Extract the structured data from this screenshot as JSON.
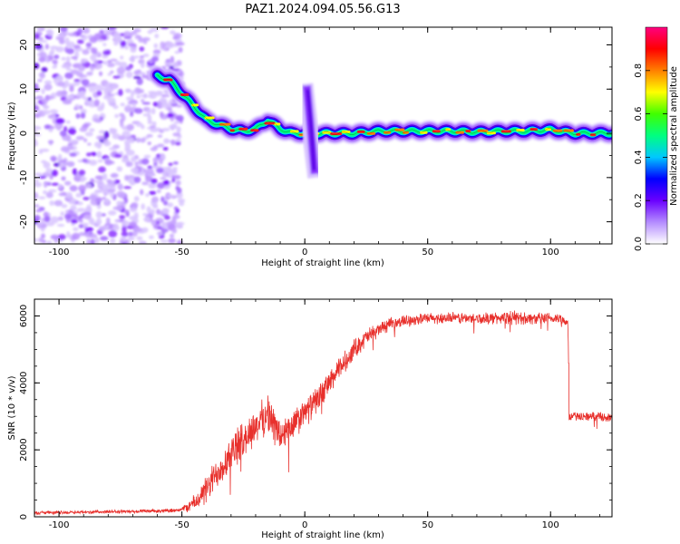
{
  "figure": {
    "title": "PAZ1.2024.094.05.56.G13"
  },
  "chart_data": [
    {
      "type": "heatmap",
      "title": "PAZ1.2024.094.05.56.G13",
      "xlabel": "Height of straight line (km)",
      "ylabel": "Frequency (Hz)",
      "xlim": [
        -110,
        125
      ],
      "ylim": [
        -25,
        24
      ],
      "x_ticks": [
        -100,
        -50,
        0,
        50,
        100
      ],
      "y_ticks": [
        -20,
        -10,
        0,
        10,
        20
      ],
      "colorbar": {
        "label": "Normalized spectral amplitude",
        "range": [
          0,
          1
        ],
        "ticks": [
          "0.0",
          "0.2",
          "0.4",
          "0.6",
          "0.8"
        ],
        "tick_values": [
          0,
          0.2,
          0.4,
          0.6,
          0.8
        ],
        "colors": [
          "#ffffff",
          "#b48cff",
          "#6a00ff",
          "#0000ff",
          "#00c8ff",
          "#00ff80",
          "#40ff00",
          "#ffff00",
          "#ff8000",
          "#ff0000",
          "#ff0080"
        ]
      },
      "noise_region": {
        "x_range": [
          -110,
          -50
        ],
        "y_range": [
          -25,
          24
        ]
      },
      "ridge": {
        "x": [
          -60,
          -55,
          -50,
          -45,
          -40,
          -35,
          -30,
          -25,
          -20,
          -15,
          -10,
          -5,
          0,
          5,
          10,
          20,
          30,
          40,
          50,
          60,
          70,
          80,
          90,
          100,
          110,
          125
        ],
        "y": [
          13,
          12,
          9,
          6,
          3,
          2,
          1,
          0.5,
          1,
          3,
          1,
          0,
          0,
          0,
          0,
          0,
          0.5,
          0.5,
          0.5,
          0.5,
          0.3,
          0.5,
          0.5,
          0.8,
          0,
          0
        ]
      },
      "anomaly": {
        "x": 3,
        "y_range": [
          -10,
          12
        ]
      }
    },
    {
      "type": "line",
      "xlabel": "Height of straight line (km)",
      "ylabel": "SNR (10 * v/v)",
      "xlim": [
        -110,
        125
      ],
      "ylim": [
        0,
        6500
      ],
      "x_ticks": [
        -100,
        -50,
        0,
        50,
        100
      ],
      "y_ticks": [
        0,
        2000,
        4000,
        6000
      ],
      "color": "#e8302c",
      "series": [
        {
          "x": [
            -110,
            -100,
            -90,
            -80,
            -70,
            -60,
            -55,
            -50,
            -45,
            -40,
            -35,
            -30,
            -25,
            -20,
            -15,
            -10,
            -5,
            0,
            5,
            10,
            15,
            20,
            25,
            30,
            35,
            40,
            45,
            50,
            55,
            60,
            65,
            70,
            75,
            80,
            85,
            90,
            95,
            100,
            105,
            107,
            108,
            110,
            115,
            120,
            125
          ],
          "values": [
            120,
            130,
            140,
            150,
            160,
            170,
            190,
            220,
            400,
            800,
            1400,
            1900,
            2300,
            2700,
            3100,
            2400,
            2700,
            3100,
            3500,
            4000,
            4500,
            5000,
            5350,
            5600,
            5750,
            5850,
            5900,
            5920,
            5930,
            5940,
            5930,
            5920,
            5930,
            5940,
            5950,
            5930,
            5920,
            5920,
            5910,
            5800,
            3000,
            3000,
            3000,
            3000,
            2950
          ],
          "noise_amp": [
            60,
            60,
            60,
            60,
            60,
            60,
            60,
            80,
            300,
            500,
            600,
            650,
            650,
            650,
            650,
            650,
            550,
            500,
            450,
            420,
            400,
            350,
            300,
            250,
            220,
            200,
            200,
            200,
            200,
            200,
            200,
            200,
            200,
            220,
            250,
            220,
            200,
            200,
            200,
            200,
            150,
            150,
            150,
            150,
            150
          ]
        }
      ]
    }
  ]
}
